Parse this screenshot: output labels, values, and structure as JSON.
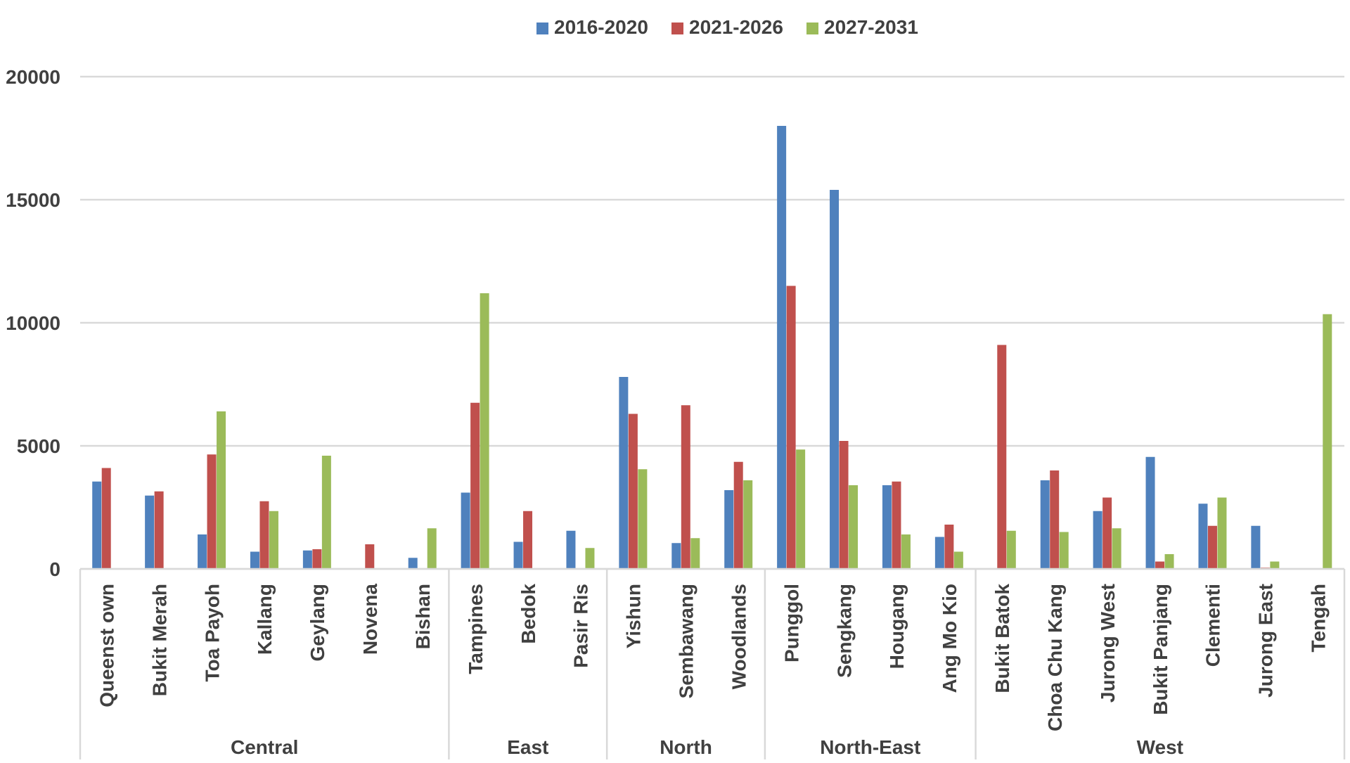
{
  "chart_data": {
    "type": "bar",
    "title": "",
    "xlabel": "",
    "ylabel": "",
    "ylim": [
      0,
      20000
    ],
    "yticks": [
      0,
      5000,
      10000,
      15000,
      20000
    ],
    "grid": true,
    "legend_position": "top-center",
    "categories": [
      "Queenstown",
      "Bukit Merah",
      "Toa Payoh",
      "Kallang",
      "Geylang",
      "Novena",
      "Bishan",
      "Tampines",
      "Bedok",
      "Pasir Ris",
      "Yishun",
      "Sembawang",
      "Woodlands",
      "Punggol",
      "Sengkang",
      "Hougang",
      "Ang Mo Kio",
      "Bukit Batok",
      "Choa Chu Kang",
      "Jurong West",
      "Bukit Panjang",
      "Clementi",
      "Jurong East",
      "Tengah"
    ],
    "category_labels": [
      "Queenst own",
      "Bukit Merah",
      "Toa Payoh",
      "Kallang",
      "Geylang",
      "Novena",
      "Bishan",
      "Tampines",
      "Bedok",
      "Pasir Ris",
      "Yishun",
      "Sembawang",
      "Woodlands",
      "Punggol",
      "Sengkang",
      "Hougang",
      "Ang Mo Kio",
      "Bukit Batok",
      "Choa Chu Kang",
      "Jurong West",
      "Bukit Panjang",
      "Clementi",
      "Jurong East",
      "Tengah"
    ],
    "groups": [
      {
        "name": "Central",
        "count": 7
      },
      {
        "name": "East",
        "count": 3
      },
      {
        "name": "North",
        "count": 3
      },
      {
        "name": "North-East",
        "count": 4
      },
      {
        "name": "West",
        "count": 7
      }
    ],
    "series": [
      {
        "name": "2016-2020",
        "color": "#4F81BD",
        "values": [
          3550,
          2980,
          1400,
          700,
          750,
          0,
          450,
          3100,
          1100,
          1550,
          7800,
          1050,
          3200,
          18000,
          15400,
          3400,
          1300,
          0,
          3600,
          2350,
          4550,
          2650,
          1750,
          0
        ]
      },
      {
        "name": "2021-2026",
        "color": "#C0504D",
        "values": [
          4100,
          3150,
          4650,
          2750,
          800,
          1000,
          0,
          6750,
          2350,
          0,
          6300,
          6650,
          4350,
          11500,
          5200,
          3550,
          1800,
          9100,
          4000,
          2900,
          300,
          1750,
          50,
          0
        ]
      },
      {
        "name": "2027-2031",
        "color": "#9BBB59",
        "values": [
          0,
          0,
          6400,
          2350,
          4600,
          0,
          1650,
          11200,
          0,
          850,
          4050,
          1250,
          3600,
          4850,
          3400,
          1400,
          700,
          1550,
          1500,
          1650,
          600,
          2900,
          300,
          10350
        ]
      }
    ]
  }
}
